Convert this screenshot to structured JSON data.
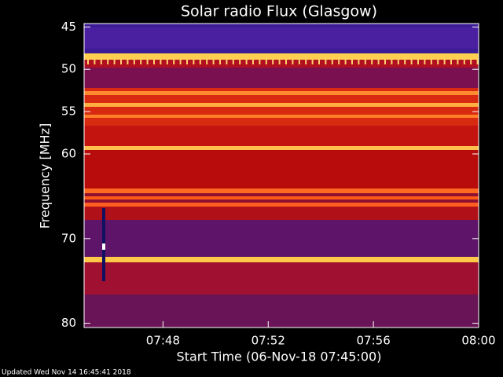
{
  "chart_data": {
    "type": "spectrogram",
    "title": "Solar radio Flux (Glasgow)",
    "x_label": "Start Time (06-Nov-18 07:45:00)",
    "y_label": "Frequency [MHz]",
    "xlim": [
      45,
      60
    ],
    "xticks": [
      {
        "value": 48,
        "label": "07:48"
      },
      {
        "value": 52,
        "label": "07:52"
      },
      {
        "value": 56,
        "label": "07:56"
      },
      {
        "value": 60,
        "label": "08:00"
      }
    ],
    "ylim": [
      44.6,
      80.5
    ],
    "yticks": [
      45,
      50,
      55,
      60,
      70,
      80
    ],
    "y_inverted": true,
    "footer": "Updated Wed Nov 14 16:45:41 2018"
  }
}
